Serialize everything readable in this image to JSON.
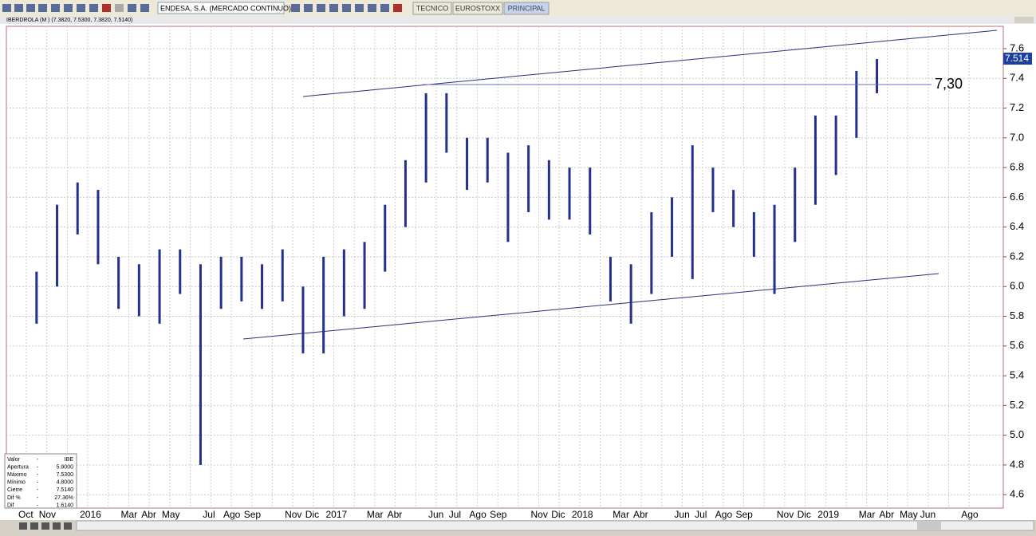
{
  "toolbar": {
    "symbol_box": "ENDESA, S.A. (MERCADO CONTINUO)",
    "tabs": [
      "TECNICO",
      "EUROSTOXX",
      "PRINCIPAL"
    ]
  },
  "chart_header": "IBERDROLA (M ) (7.3820, 7.5300, 7.3820, 7.5140)",
  "annotation": "7,30",
  "last_price_label": "7.514",
  "info_panel": [
    [
      "Valor",
      "-",
      "IBE"
    ],
    [
      "Apertura",
      "-",
      "5.9000"
    ],
    [
      "Máximo",
      "-",
      "7.5300"
    ],
    [
      "Mínimo",
      "-",
      "4.8000"
    ],
    [
      "Cierre",
      "-",
      "7.5140"
    ],
    [
      "Dif %",
      "-",
      "27.36%"
    ],
    [
      "Dif",
      "-",
      "1.6140"
    ]
  ],
  "chart_data": {
    "type": "range",
    "color": "#24308f",
    "categories": [
      "Oct",
      "Nov",
      null,
      "2016",
      null,
      "Mar",
      "Abr",
      "May",
      null,
      "Jul",
      "Ago",
      "Sep",
      null,
      "Nov",
      "Dic",
      "2017",
      null,
      "Mar",
      "Abr",
      null,
      "Jun",
      "Jul",
      "Ago",
      "Sep",
      null,
      "Nov",
      "Dic",
      "2018",
      null,
      "Mar",
      "Abr",
      null,
      "Jun",
      "Jul",
      "Ago",
      "Sep",
      null,
      "Nov",
      "Dic",
      "2019",
      null,
      "Mar",
      "Abr",
      "May",
      "Jun",
      null,
      "Ago"
    ],
    "high": [
      6.1,
      6.55,
      6.7,
      6.65,
      6.2,
      6.15,
      6.25,
      6.25,
      6.15,
      6.2,
      6.2,
      6.15,
      6.25,
      6.0,
      6.2,
      6.25,
      6.3,
      6.55,
      6.85,
      7.3,
      7.3,
      7.0,
      7.0,
      6.9,
      6.95,
      6.85,
      6.8,
      6.8,
      6.2,
      6.15,
      6.5,
      6.6,
      6.95,
      6.8,
      6.65,
      6.5,
      6.55,
      6.8,
      7.15,
      7.15,
      7.45,
      7.53,
      null,
      null,
      null,
      null,
      null
    ],
    "low": [
      5.75,
      6.0,
      6.35,
      6.15,
      5.85,
      5.8,
      5.75,
      5.95,
      4.8,
      5.85,
      5.9,
      5.85,
      5.9,
      5.55,
      5.55,
      5.8,
      5.85,
      6.1,
      6.4,
      6.7,
      6.9,
      6.65,
      6.7,
      6.3,
      6.5,
      6.45,
      6.45,
      6.35,
      5.9,
      5.75,
      5.95,
      6.2,
      6.05,
      6.5,
      6.4,
      6.2,
      5.95,
      6.3,
      6.55,
      6.75,
      7.0,
      7.3,
      null,
      null,
      null,
      null,
      null
    ],
    "ylim": [
      4.51,
      7.75
    ],
    "yticks": [
      4.6,
      4.8,
      {
        "value": 5.0,
        "label": "5.0"
      },
      5.2,
      5.4,
      5.6,
      5.8,
      {
        "value": 6.0,
        "label": "6.0"
      },
      6.2,
      6.4,
      6.6,
      6.8,
      {
        "value": 7.0,
        "label": "7.0"
      },
      7.2,
      7.4,
      7.6
    ],
    "grid": true
  }
}
